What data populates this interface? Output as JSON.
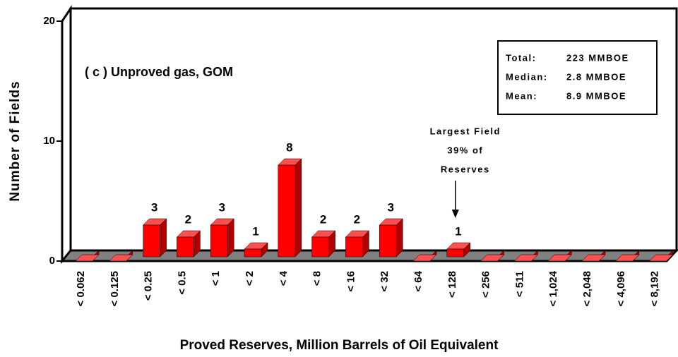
{
  "chart_data": {
    "type": "bar3d",
    "title": "( c ) Unproved gas,  GOM",
    "x_label": "Proved Reserves, Million Barrels of Oil Equivalent",
    "y_label": "Number of Fields",
    "categories": [
      "< 0.062",
      "< 0.125",
      "< 0.25",
      "< 0.5",
      "< 1",
      "< 2",
      "< 4",
      "< 8",
      "< 16",
      "< 32",
      "< 64",
      "< 128",
      "< 256",
      "< 511",
      "< 1,024",
      "< 2,048",
      "< 4,096",
      "< 8,192"
    ],
    "values": [
      0,
      0,
      3,
      2,
      3,
      1,
      8,
      2,
      2,
      3,
      0,
      1,
      0,
      0,
      0,
      0,
      0,
      0
    ],
    "color": "#ff0000",
    "ylim": [
      0,
      20
    ],
    "yticks": [
      0,
      10,
      20
    ],
    "stats": [
      {
        "label": "Total:",
        "value": "223 MMBOE"
      },
      {
        "label": "Median:",
        "value": "2.8 MMBOE"
      },
      {
        "label": "Mean:",
        "value": "8.9 MMBOE"
      }
    ],
    "annotation": {
      "lines": [
        "Largest Field",
        "39% of",
        "Reserves"
      ],
      "category_index": 11
    }
  }
}
